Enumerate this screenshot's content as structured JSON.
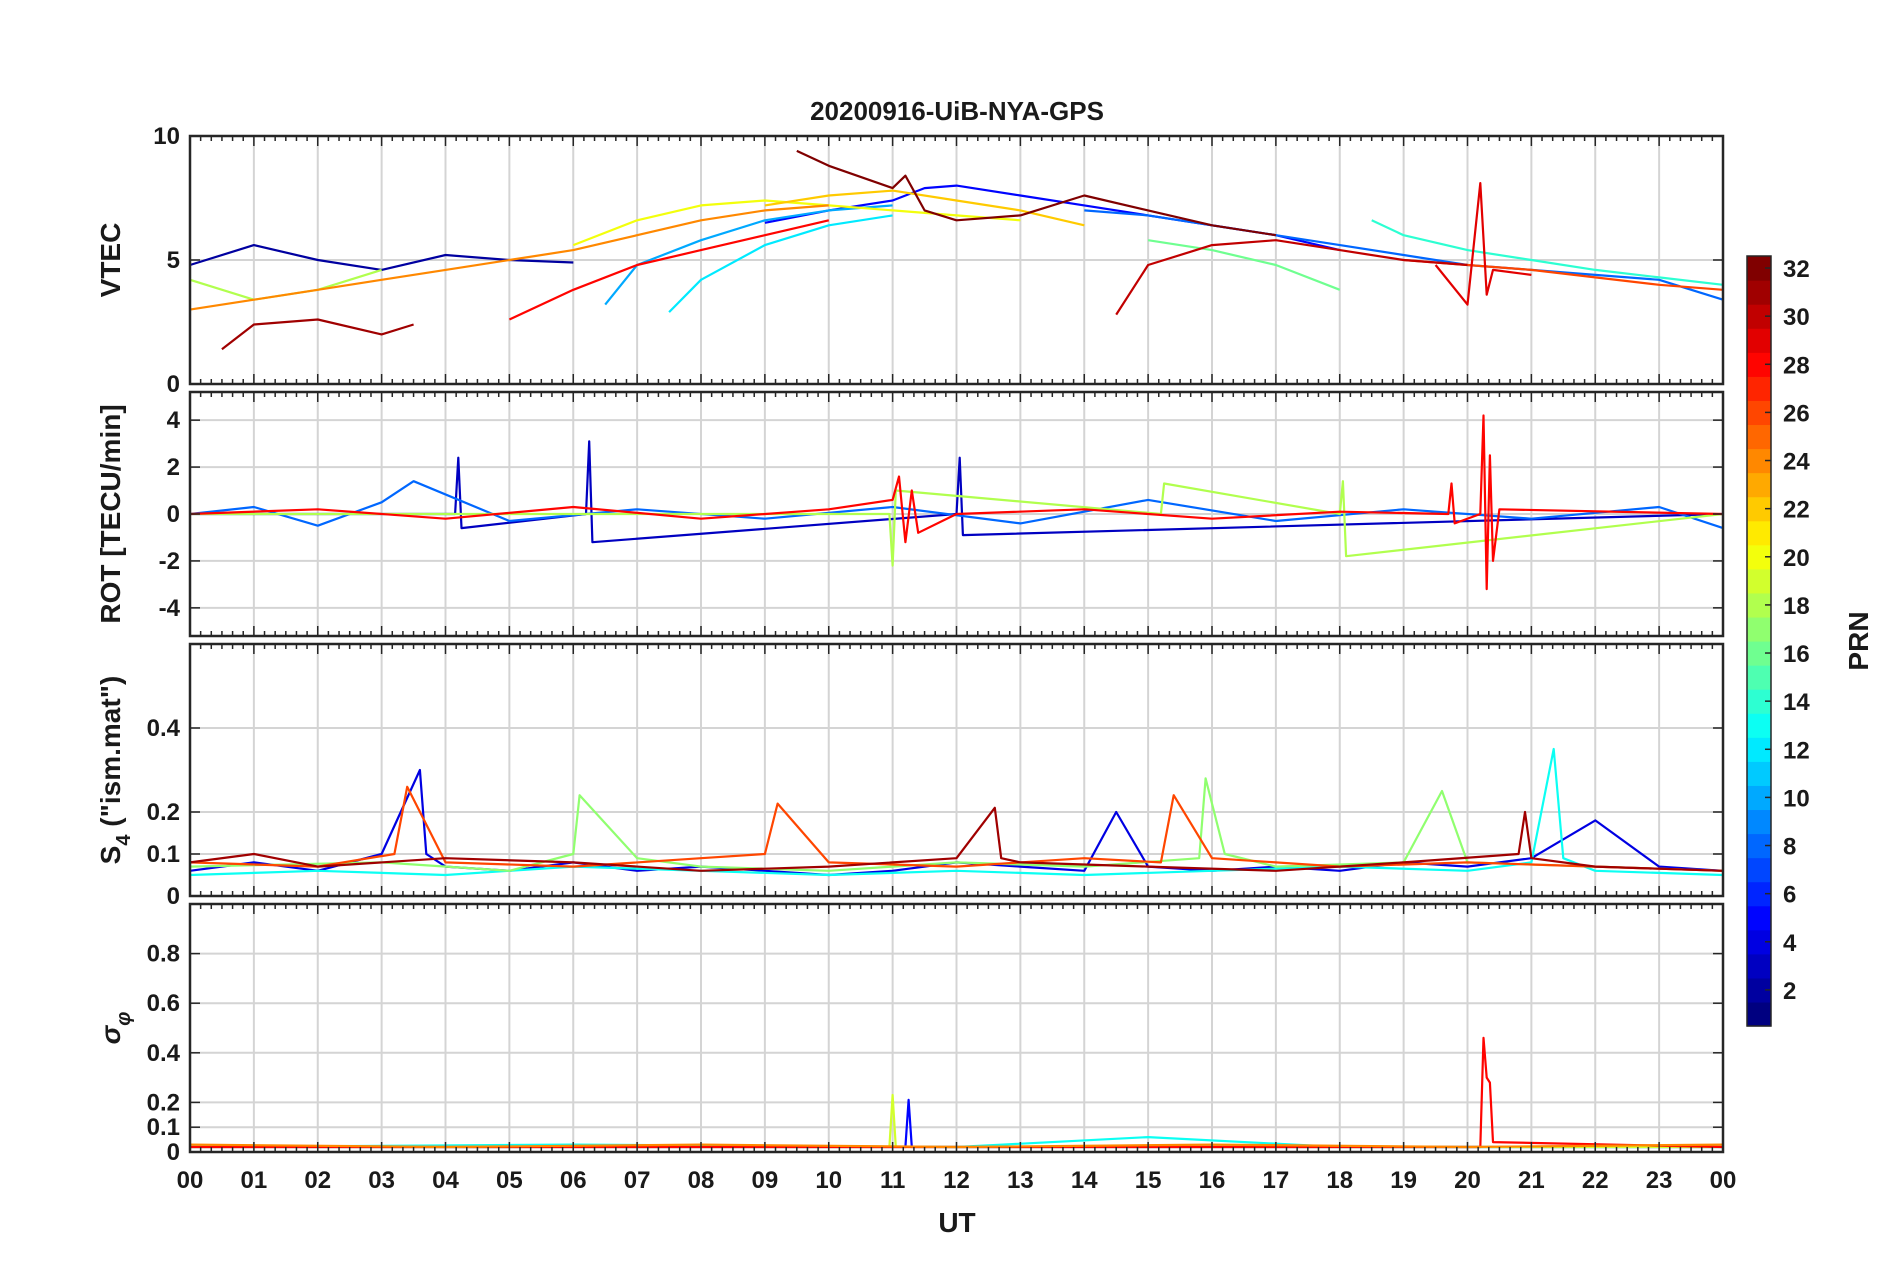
{
  "figure": {
    "title": "20200916-UiB-NYA-GPS",
    "xlabel": "UT"
  },
  "chart_data": [
    {
      "type": "line",
      "ylabel": "VTEC",
      "xlim": [
        0,
        24
      ],
      "ylim": [
        0,
        10
      ],
      "yticks": [
        0,
        5,
        10
      ],
      "xticklabels": [
        "00",
        "01",
        "02",
        "03",
        "04",
        "05",
        "06",
        "07",
        "08",
        "09",
        "10",
        "11",
        "12",
        "13",
        "14",
        "15",
        "16",
        "17",
        "18",
        "19",
        "20",
        "21",
        "22",
        "23",
        "00"
      ],
      "series": [
        {
          "prn": 2,
          "x": [
            0,
            1,
            2,
            3,
            4,
            5,
            6
          ],
          "y": [
            4.8,
            5.6,
            5.0,
            4.6,
            5.2,
            5.0,
            4.9
          ]
        },
        {
          "prn": 5,
          "x": [
            9,
            10,
            11,
            11.5,
            12,
            13,
            14,
            15,
            16,
            17,
            18
          ],
          "y": [
            6.5,
            7.0,
            7.4,
            7.9,
            8.0,
            7.6,
            7.2,
            6.8,
            6.4,
            6.0,
            5.4
          ]
        },
        {
          "prn": 8,
          "x": [
            14,
            15,
            16,
            17,
            18,
            19,
            20,
            21,
            22,
            23,
            24
          ],
          "y": [
            7.0,
            6.8,
            6.4,
            6.0,
            5.6,
            5.2,
            4.8,
            4.6,
            4.4,
            4.2,
            3.4
          ]
        },
        {
          "prn": 10,
          "x": [
            6.5,
            7,
            8,
            9,
            10,
            11
          ],
          "y": [
            3.2,
            4.8,
            5.8,
            6.6,
            7.0,
            7.2
          ]
        },
        {
          "prn": 12,
          "x": [
            7.5,
            8,
            9,
            10,
            11
          ],
          "y": [
            2.9,
            4.2,
            5.6,
            6.4,
            6.8
          ]
        },
        {
          "prn": 14,
          "x": [
            18.5,
            19,
            20,
            21,
            22,
            23,
            24
          ],
          "y": [
            6.6,
            6.0,
            5.4,
            5.0,
            4.6,
            4.3,
            4.0
          ]
        },
        {
          "prn": 16,
          "x": [
            15,
            16,
            17,
            18
          ],
          "y": [
            5.8,
            5.4,
            4.8,
            3.8
          ]
        },
        {
          "prn": 18,
          "x": [
            0,
            1,
            2,
            3
          ],
          "y": [
            4.2,
            3.4,
            3.8,
            4.6
          ]
        },
        {
          "prn": 20,
          "x": [
            6,
            7,
            8,
            9,
            10,
            11,
            12,
            13
          ],
          "y": [
            5.6,
            6.6,
            7.2,
            7.4,
            7.2,
            7.0,
            6.8,
            6.6
          ]
        },
        {
          "prn": 22,
          "x": [
            9,
            10,
            11,
            12,
            13,
            14
          ],
          "y": [
            7.2,
            7.6,
            7.8,
            7.4,
            7.0,
            6.4
          ]
        },
        {
          "prn": 24,
          "x": [
            0,
            1,
            2,
            3,
            4,
            5,
            6,
            7,
            8,
            9,
            10
          ],
          "y": [
            3.0,
            3.4,
            3.8,
            4.2,
            4.6,
            5.0,
            5.4,
            6.0,
            6.6,
            7.0,
            7.2
          ]
        },
        {
          "prn": 26,
          "x": [
            19,
            20,
            21,
            22,
            23,
            24
          ],
          "y": [
            5.0,
            4.8,
            4.6,
            4.3,
            4.0,
            3.8
          ]
        },
        {
          "prn": 28,
          "x": [
            5,
            6,
            7,
            8,
            9,
            10
          ],
          "y": [
            2.6,
            3.8,
            4.8,
            5.4,
            6.0,
            6.6
          ]
        },
        {
          "prn": 29,
          "x": [
            19.5,
            20,
            20.2,
            20.3,
            20.4,
            21
          ],
          "y": [
            4.8,
            3.2,
            8.1,
            3.6,
            4.6,
            4.4
          ]
        },
        {
          "prn": 30,
          "x": [
            14.5,
            15,
            16,
            17,
            18,
            19,
            20
          ],
          "y": [
            2.8,
            4.8,
            5.6,
            5.8,
            5.4,
            5.0,
            4.8
          ]
        },
        {
          "prn": 31,
          "x": [
            0.5,
            1,
            2,
            3,
            3.5
          ],
          "y": [
            1.4,
            2.4,
            2.6,
            2.0,
            2.4
          ]
        },
        {
          "prn": 32,
          "x": [
            9.5,
            10,
            11,
            11.2,
            11.5,
            12,
            13,
            14,
            15,
            16,
            17
          ],
          "y": [
            9.4,
            8.8,
            7.9,
            8.4,
            7.0,
            6.6,
            6.8,
            7.6,
            7.0,
            6.4,
            6.0
          ]
        }
      ]
    },
    {
      "type": "line",
      "ylabel": "ROT [TECU/min]",
      "xlim": [
        0,
        24
      ],
      "ylim": [
        -5.2,
        5.2
      ],
      "yticks": [
        -4,
        -2,
        0,
        2,
        4
      ],
      "series": [
        {
          "prn": 3,
          "x": [
            0,
            4.15,
            4.2,
            4.25,
            6.2,
            6.25,
            6.3,
            12,
            12.05,
            12.1,
            24
          ],
          "y": [
            0,
            0,
            2.4,
            -0.6,
            0,
            3.1,
            -1.2,
            0,
            2.4,
            -0.9,
            0
          ]
        },
        {
          "prn": 8,
          "x": [
            0,
            1,
            2,
            3,
            3.5,
            5,
            7,
            9,
            11,
            13,
            15,
            17,
            19,
            21,
            23,
            24
          ],
          "y": [
            0,
            0.3,
            -0.5,
            0.5,
            1.4,
            -0.3,
            0.2,
            -0.2,
            0.3,
            -0.4,
            0.6,
            -0.3,
            0.2,
            -0.2,
            0.3,
            -0.6
          ]
        },
        {
          "prn": 18,
          "x": [
            0,
            10.95,
            11.0,
            11.05,
            15.2,
            15.25,
            18,
            18.05,
            18.1,
            24
          ],
          "y": [
            0,
            0,
            -2.2,
            1.0,
            0,
            1.3,
            0,
            1.4,
            -1.8,
            0
          ]
        },
        {
          "prn": 28,
          "x": [
            0,
            2,
            4,
            6,
            8,
            10,
            11,
            11.1,
            11.2,
            11.3,
            11.4,
            12,
            14,
            16,
            18,
            19.7,
            19.75,
            19.8,
            20.2,
            20.25,
            20.3,
            20.35,
            20.4,
            20.5,
            24
          ],
          "y": [
            0,
            0.2,
            -0.2,
            0.3,
            -0.2,
            0.2,
            0.6,
            1.6,
            -1.2,
            1.0,
            -0.8,
            0,
            0.2,
            -0.2,
            0.1,
            0,
            1.3,
            -0.4,
            0,
            4.2,
            -3.2,
            2.5,
            -2.0,
            0.2,
            0
          ]
        }
      ]
    },
    {
      "type": "line",
      "ylabel": "S4 (\"ism.mat\")",
      "ylabel_parts": {
        "s": "S",
        "sub": "4",
        "rest": " (\"ism.mat\")"
      },
      "xlim": [
        0,
        24
      ],
      "ylim": [
        0,
        0.6
      ],
      "yticks": [
        0,
        0.1,
        0.2,
        0.4
      ],
      "series": [
        {
          "prn": 4,
          "x": [
            0,
            1,
            2,
            3,
            3.6,
            3.7,
            4,
            5,
            6,
            7,
            8,
            9,
            10,
            11,
            12,
            13,
            14,
            14.5,
            15,
            16,
            17,
            18,
            19,
            20,
            21,
            22,
            23,
            24
          ],
          "y": [
            0.06,
            0.08,
            0.06,
            0.1,
            0.3,
            0.1,
            0.07,
            0.06,
            0.08,
            0.06,
            0.07,
            0.06,
            0.05,
            0.06,
            0.08,
            0.07,
            0.06,
            0.2,
            0.07,
            0.06,
            0.07,
            0.06,
            0.08,
            0.07,
            0.09,
            0.18,
            0.07,
            0.06
          ]
        },
        {
          "prn": 13,
          "x": [
            0,
            2,
            4,
            6,
            8,
            10,
            12,
            14,
            16,
            18,
            20,
            21,
            21.35,
            21.5,
            22,
            24
          ],
          "y": [
            0.05,
            0.06,
            0.05,
            0.07,
            0.06,
            0.05,
            0.06,
            0.05,
            0.06,
            0.07,
            0.06,
            0.08,
            0.35,
            0.09,
            0.06,
            0.05
          ]
        },
        {
          "prn": 17,
          "x": [
            0,
            3,
            5,
            6,
            6.1,
            7,
            8,
            10,
            12,
            14,
            15.8,
            15.9,
            16.2,
            17,
            19,
            19.6,
            20,
            22,
            24
          ],
          "y": [
            0.07,
            0.08,
            0.06,
            0.1,
            0.24,
            0.09,
            0.07,
            0.06,
            0.08,
            0.07,
            0.09,
            0.28,
            0.1,
            0.07,
            0.08,
            0.25,
            0.08,
            0.07,
            0.06
          ]
        },
        {
          "prn": 26,
          "x": [
            0,
            2,
            3.2,
            3.4,
            4,
            6,
            8,
            9,
            9.2,
            10,
            12,
            14,
            15.2,
            15.4,
            16,
            18,
            20,
            22,
            24
          ],
          "y": [
            0.08,
            0.07,
            0.1,
            0.26,
            0.08,
            0.07,
            0.09,
            0.1,
            0.22,
            0.08,
            0.07,
            0.09,
            0.08,
            0.24,
            0.09,
            0.07,
            0.08,
            0.07,
            0.06
          ]
        },
        {
          "prn": 31,
          "x": [
            0,
            1,
            2,
            4,
            6,
            8,
            10,
            12,
            12.6,
            12.7,
            13,
            15,
            17,
            19,
            20.8,
            20.9,
            21,
            22,
            24
          ],
          "y": [
            0.08,
            0.1,
            0.07,
            0.09,
            0.08,
            0.06,
            0.07,
            0.09,
            0.21,
            0.09,
            0.08,
            0.07,
            0.06,
            0.08,
            0.1,
            0.2,
            0.09,
            0.07,
            0.06
          ]
        }
      ]
    },
    {
      "type": "line",
      "ylabel": "σ φ",
      "ylabel_parts": {
        "sigma": "σ",
        "sub": "φ"
      },
      "xlim": [
        0,
        24
      ],
      "ylim": [
        0,
        1
      ],
      "yticks": [
        0,
        0.1,
        0.2,
        0.4,
        0.6,
        0.8
      ],
      "series": [
        {
          "prn": 5,
          "x": [
            0,
            11.2,
            11.25,
            11.3,
            24
          ],
          "y": [
            0.02,
            0.02,
            0.21,
            0.02,
            0.02
          ]
        },
        {
          "prn": 13,
          "x": [
            0,
            6,
            12,
            15,
            18,
            24
          ],
          "y": [
            0.02,
            0.03,
            0.02,
            0.06,
            0.02,
            0.02
          ]
        },
        {
          "prn": 19,
          "x": [
            0,
            10.95,
            11.0,
            11.05,
            24
          ],
          "y": [
            0.02,
            0.02,
            0.23,
            0.02,
            0.02
          ]
        },
        {
          "prn": 28,
          "x": [
            0,
            20.2,
            20.25,
            20.3,
            20.35,
            20.4,
            24
          ],
          "y": [
            0.02,
            0.02,
            0.46,
            0.3,
            0.28,
            0.04,
            0.02
          ]
        },
        {
          "prn": 24,
          "x": [
            0,
            4,
            8,
            12,
            16,
            20,
            24
          ],
          "y": [
            0.03,
            0.02,
            0.03,
            0.02,
            0.03,
            0.02,
            0.03
          ]
        }
      ]
    }
  ],
  "colorbar": {
    "label": "PRN",
    "colormap": "jet",
    "range": [
      1,
      32
    ],
    "ticks": [
      2,
      4,
      6,
      8,
      10,
      12,
      14,
      16,
      18,
      20,
      22,
      24,
      26,
      28,
      30,
      32
    ]
  }
}
